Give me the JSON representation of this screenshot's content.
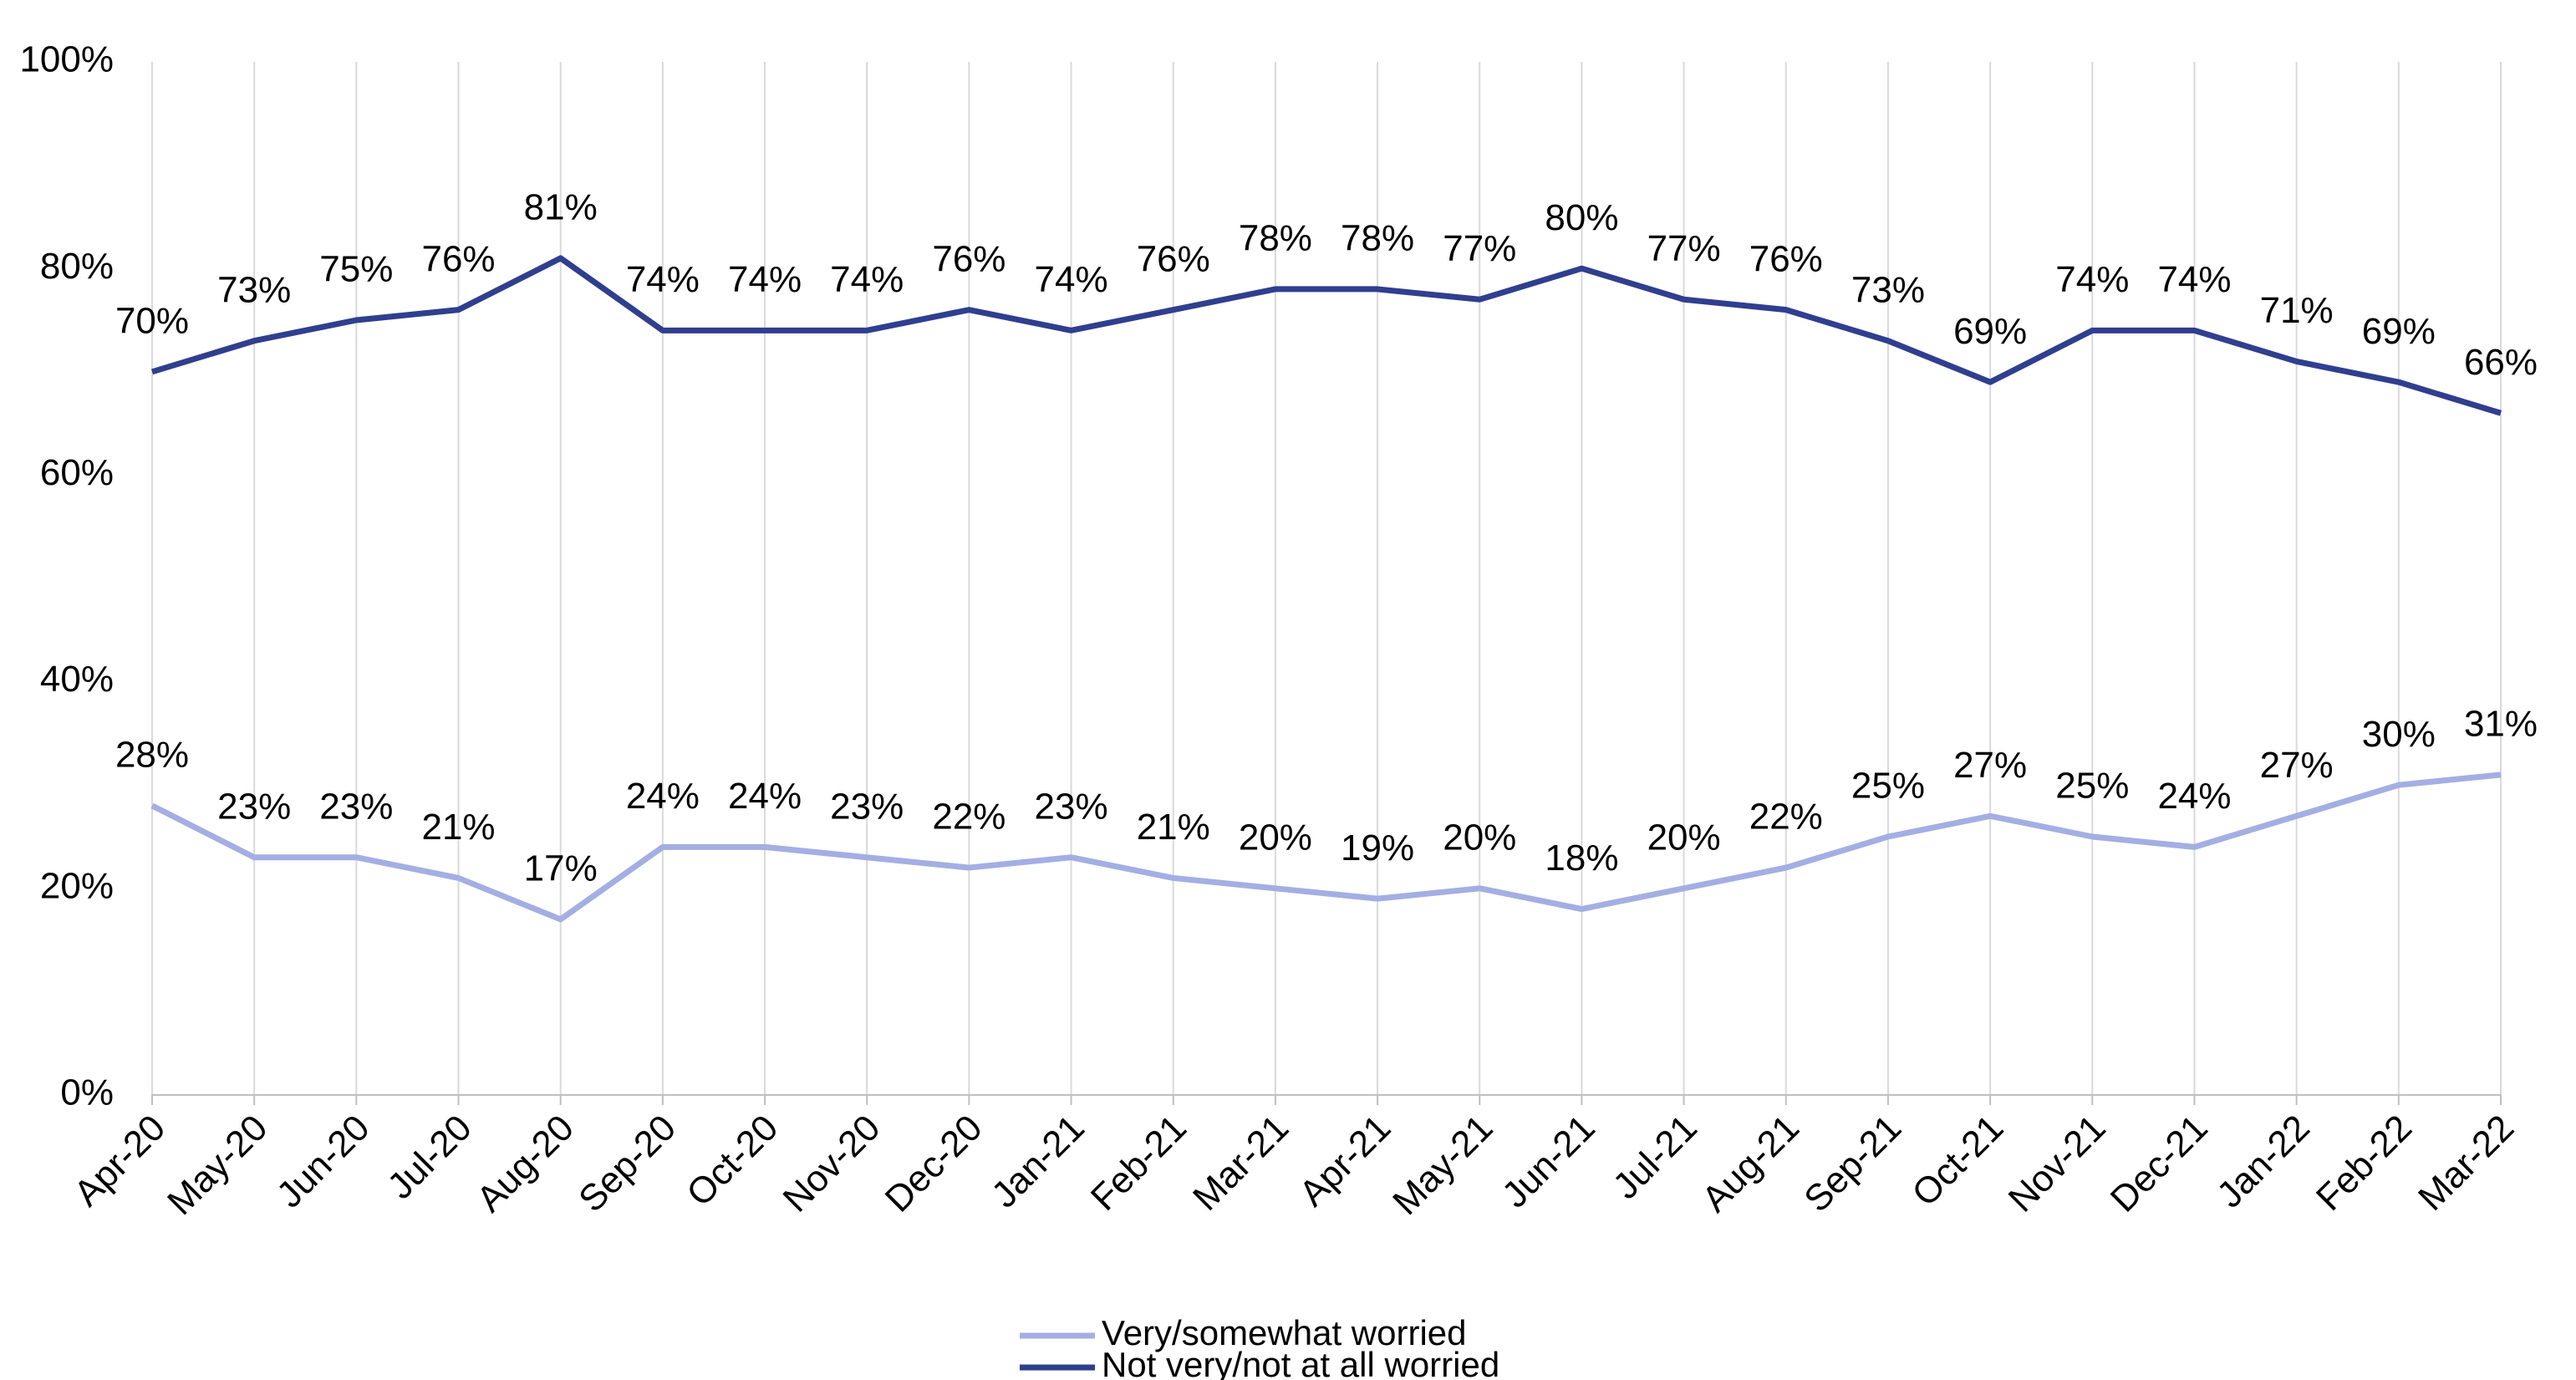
{
  "chart_data": {
    "type": "line",
    "categories": [
      "Apr-20",
      "May-20",
      "Jun-20",
      "Jul-20",
      "Aug-20",
      "Sep-20",
      "Oct-20",
      "Nov-20",
      "Dec-20",
      "Jan-21",
      "Feb-21",
      "Mar-21",
      "Apr-21",
      "May-21",
      "Jun-21",
      "Jul-21",
      "Aug-21",
      "Sep-21",
      "Oct-21",
      "Nov-21",
      "Dec-21",
      "Jan-22",
      "Feb-22",
      "Mar-22"
    ],
    "series": [
      {
        "name": "Very/somewhat worried",
        "color": "#a3afe3",
        "values": [
          28,
          23,
          23,
          21,
          17,
          24,
          24,
          23,
          22,
          23,
          21,
          20,
          19,
          20,
          18,
          20,
          22,
          25,
          27,
          25,
          24,
          27,
          30,
          31
        ],
        "value_labels": [
          "28%",
          "23%",
          "23%",
          "21%",
          "17%",
          "24%",
          "24%",
          "23%",
          "22%",
          "23%",
          "21%",
          "20%",
          "19%",
          "20%",
          "18%",
          "20%",
          "22%",
          "25%",
          "27%",
          "25%",
          "24%",
          "27%",
          "30%",
          "31%"
        ]
      },
      {
        "name": "Not very/not at all worried",
        "color": "#2f3f8f",
        "values": [
          70,
          73,
          75,
          76,
          81,
          74,
          74,
          74,
          76,
          74,
          76,
          78,
          78,
          77,
          80,
          77,
          76,
          73,
          69,
          74,
          74,
          71,
          69,
          66
        ],
        "value_labels": [
          "70%",
          "73%",
          "75%",
          "76%",
          "81%",
          "74%",
          "74%",
          "74%",
          "76%",
          "74%",
          "76%",
          "78%",
          "78%",
          "77%",
          "80%",
          "77%",
          "76%",
          "73%",
          "69%",
          "74%",
          "74%",
          "71%",
          "69%",
          "66%"
        ]
      }
    ],
    "ylim": [
      0,
      100
    ],
    "yticks": [
      {
        "value": 0,
        "label": "0%"
      },
      {
        "value": 20,
        "label": "20%"
      },
      {
        "value": 40,
        "label": "40%"
      },
      {
        "value": 60,
        "label": "60%"
      },
      {
        "value": 80,
        "label": "80%"
      },
      {
        "value": 100,
        "label": "100%"
      }
    ],
    "grid": true,
    "legend": "bottom"
  }
}
